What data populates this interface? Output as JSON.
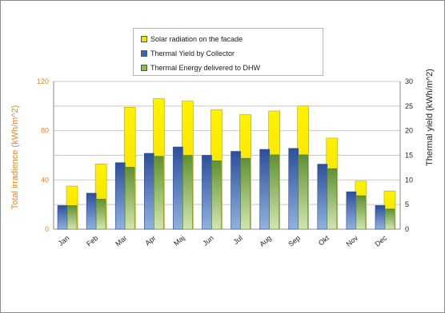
{
  "chart_data": {
    "type": "bar",
    "categories": [
      "Jan",
      "Feb",
      "Mar",
      "Apr",
      "Maj",
      "Jun",
      "Jul",
      "Aug",
      "Sep",
      "Okt",
      "Nov",
      "Dec"
    ],
    "series": [
      {
        "name": "Solar radiation on the facade",
        "axis": "left",
        "color": "#f5e000",
        "values": [
          35,
          53,
          99,
          106,
          104,
          97,
          93,
          96,
          100,
          74,
          39,
          31
        ]
      },
      {
        "name": "Thermal Yield by Collector",
        "axis": "right",
        "color": "#3c64b4",
        "values": [
          4.8,
          7.3,
          13.5,
          15.4,
          16.7,
          15.0,
          15.8,
          16.2,
          16.4,
          13.2,
          7.6,
          4.8
        ]
      },
      {
        "name": "Thermal Energy delivered to DHW",
        "axis": "right",
        "color": "#8cbc4c",
        "values": [
          4.8,
          6.1,
          12.6,
          14.8,
          15.0,
          13.9,
          14.4,
          15.1,
          15.1,
          12.3,
          6.8,
          4.1
        ]
      }
    ],
    "y_left": {
      "label": "Total irradience  (kWh/m^2)",
      "ylim": [
        0,
        120
      ],
      "ticks": [
        "0",
        "40",
        "80",
        "120"
      ]
    },
    "y_right": {
      "label": "Thermal yield   (kWh/m^2)",
      "ylim": [
        0,
        30
      ],
      "ticks": [
        "0",
        "5",
        "10",
        "15",
        "20",
        "25",
        "30"
      ]
    },
    "grid": true,
    "legend_position": "top-center"
  }
}
